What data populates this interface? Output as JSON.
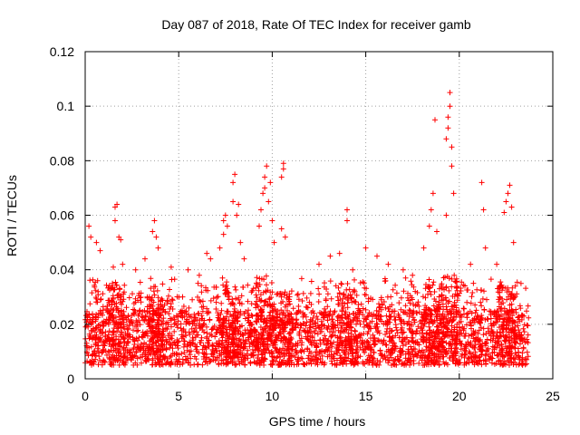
{
  "chart_data": {
    "type": "scatter",
    "title": "Day 087 of 2018, Rate Of TEC Index for receiver gamb",
    "xlabel": "GPS time / hours",
    "ylabel": "ROTI / TECUs",
    "xlim": [
      0,
      25
    ],
    "ylim": [
      0,
      0.12
    ],
    "x_ticks": [
      0,
      5,
      10,
      15,
      20,
      25
    ],
    "y_ticks": [
      0,
      0.02,
      0.04,
      0.06,
      0.08,
      0.1,
      0.12
    ],
    "x_tick_labels": [
      "0",
      "5",
      "10",
      "15",
      "20",
      "25"
    ],
    "y_tick_labels": [
      "0",
      "0.02",
      "0.04",
      "0.06",
      "0.08",
      "0.1",
      "0.12"
    ],
    "grid": true,
    "marker": "+",
    "marker_color": "#ff0000",
    "series": [
      {
        "name": "ROTI",
        "x_range": [
          0.0,
          23.7
        ],
        "baseline_min": 0.005,
        "baseline_max": 0.025,
        "outliers": [
          {
            "x": 0.2,
            "y": 0.056
          },
          {
            "x": 0.3,
            "y": 0.052
          },
          {
            "x": 0.6,
            "y": 0.05
          },
          {
            "x": 0.8,
            "y": 0.047
          },
          {
            "x": 1.5,
            "y": 0.041
          },
          {
            "x": 1.6,
            "y": 0.058
          },
          {
            "x": 1.6,
            "y": 0.063
          },
          {
            "x": 1.7,
            "y": 0.064
          },
          {
            "x": 1.8,
            "y": 0.052
          },
          {
            "x": 1.9,
            "y": 0.051
          },
          {
            "x": 2.0,
            "y": 0.042
          },
          {
            "x": 2.7,
            "y": 0.04
          },
          {
            "x": 3.2,
            "y": 0.044
          },
          {
            "x": 3.6,
            "y": 0.054
          },
          {
            "x": 3.7,
            "y": 0.058
          },
          {
            "x": 3.8,
            "y": 0.052
          },
          {
            "x": 3.9,
            "y": 0.048
          },
          {
            "x": 4.6,
            "y": 0.041
          },
          {
            "x": 5.5,
            "y": 0.04
          },
          {
            "x": 6.1,
            "y": 0.038
          },
          {
            "x": 6.5,
            "y": 0.046
          },
          {
            "x": 6.7,
            "y": 0.044
          },
          {
            "x": 7.2,
            "y": 0.048
          },
          {
            "x": 7.4,
            "y": 0.053
          },
          {
            "x": 7.4,
            "y": 0.058
          },
          {
            "x": 7.5,
            "y": 0.06
          },
          {
            "x": 7.6,
            "y": 0.056
          },
          {
            "x": 7.9,
            "y": 0.065
          },
          {
            "x": 7.9,
            "y": 0.072
          },
          {
            "x": 8.0,
            "y": 0.075
          },
          {
            "x": 8.1,
            "y": 0.06
          },
          {
            "x": 8.2,
            "y": 0.064
          },
          {
            "x": 8.3,
            "y": 0.05
          },
          {
            "x": 8.5,
            "y": 0.044
          },
          {
            "x": 9.3,
            "y": 0.056
          },
          {
            "x": 9.4,
            "y": 0.062
          },
          {
            "x": 9.5,
            "y": 0.068
          },
          {
            "x": 9.6,
            "y": 0.07
          },
          {
            "x": 9.6,
            "y": 0.074
          },
          {
            "x": 9.7,
            "y": 0.078
          },
          {
            "x": 9.8,
            "y": 0.065
          },
          {
            "x": 9.9,
            "y": 0.072
          },
          {
            "x": 10.0,
            "y": 0.058
          },
          {
            "x": 10.1,
            "y": 0.05
          },
          {
            "x": 10.5,
            "y": 0.055
          },
          {
            "x": 10.5,
            "y": 0.074
          },
          {
            "x": 10.6,
            "y": 0.077
          },
          {
            "x": 10.6,
            "y": 0.079
          },
          {
            "x": 10.7,
            "y": 0.052
          },
          {
            "x": 12.5,
            "y": 0.042
          },
          {
            "x": 13.1,
            "y": 0.045
          },
          {
            "x": 13.6,
            "y": 0.046
          },
          {
            "x": 14.0,
            "y": 0.058
          },
          {
            "x": 14.0,
            "y": 0.062
          },
          {
            "x": 14.3,
            "y": 0.04
          },
          {
            "x": 15.0,
            "y": 0.048
          },
          {
            "x": 15.6,
            "y": 0.045
          },
          {
            "x": 16.2,
            "y": 0.042
          },
          {
            "x": 17.0,
            "y": 0.04
          },
          {
            "x": 17.5,
            "y": 0.038
          },
          {
            "x": 18.1,
            "y": 0.048
          },
          {
            "x": 18.4,
            "y": 0.056
          },
          {
            "x": 18.5,
            "y": 0.062
          },
          {
            "x": 18.6,
            "y": 0.068
          },
          {
            "x": 18.7,
            "y": 0.095
          },
          {
            "x": 18.8,
            "y": 0.054
          },
          {
            "x": 19.3,
            "y": 0.06
          },
          {
            "x": 19.3,
            "y": 0.088
          },
          {
            "x": 19.4,
            "y": 0.092
          },
          {
            "x": 19.4,
            "y": 0.096
          },
          {
            "x": 19.5,
            "y": 0.1
          },
          {
            "x": 19.5,
            "y": 0.105
          },
          {
            "x": 19.6,
            "y": 0.085
          },
          {
            "x": 19.6,
            "y": 0.078
          },
          {
            "x": 19.7,
            "y": 0.068
          },
          {
            "x": 20.6,
            "y": 0.042
          },
          {
            "x": 21.2,
            "y": 0.072
          },
          {
            "x": 21.3,
            "y": 0.062
          },
          {
            "x": 21.4,
            "y": 0.048
          },
          {
            "x": 22.0,
            "y": 0.042
          },
          {
            "x": 22.4,
            "y": 0.061
          },
          {
            "x": 22.5,
            "y": 0.065
          },
          {
            "x": 22.6,
            "y": 0.068
          },
          {
            "x": 22.7,
            "y": 0.071
          },
          {
            "x": 22.8,
            "y": 0.063
          },
          {
            "x": 22.9,
            "y": 0.05
          },
          {
            "x": 23.3,
            "y": 0.035
          }
        ],
        "bursts": [
          {
            "x": 1.7,
            "y": 0.035
          },
          {
            "x": 3.7,
            "y": 0.03
          },
          {
            "x": 7.7,
            "y": 0.035
          },
          {
            "x": 9.6,
            "y": 0.038
          },
          {
            "x": 10.5,
            "y": 0.032
          },
          {
            "x": 14.0,
            "y": 0.035
          },
          {
            "x": 18.6,
            "y": 0.035
          },
          {
            "x": 19.4,
            "y": 0.038
          },
          {
            "x": 22.6,
            "y": 0.035
          }
        ]
      }
    ]
  }
}
